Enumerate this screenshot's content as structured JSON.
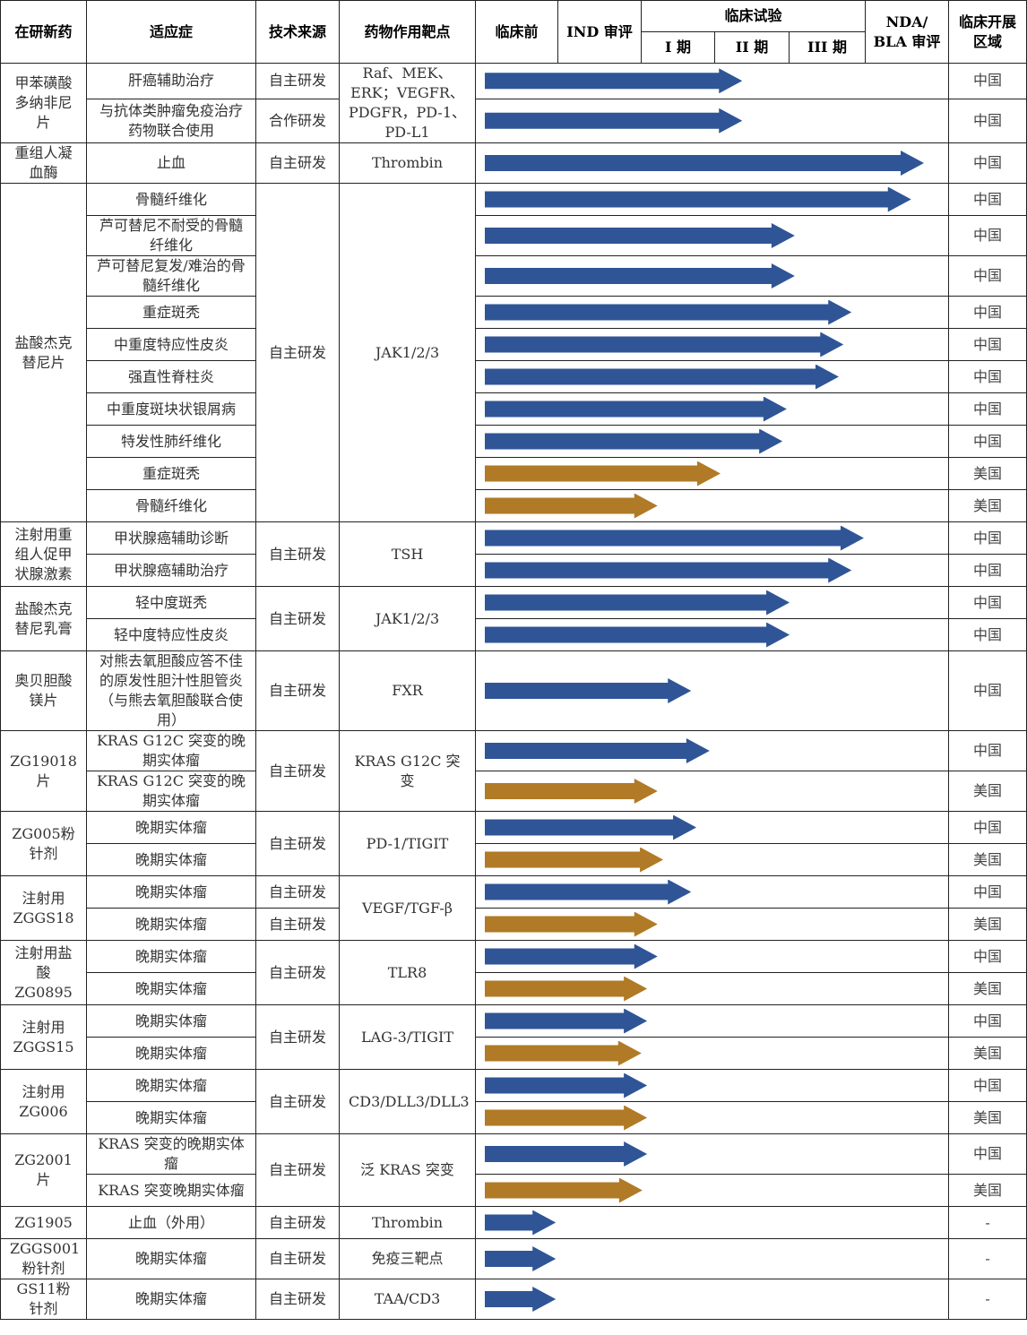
{
  "header": {
    "drug": "在研新药",
    "indication": "适应症",
    "source": "技术来源",
    "target": "药物作用靶点",
    "preclinical": "临床前",
    "ind": "IND 审评",
    "clinical": "临床试验",
    "phase1": "I 期",
    "phase2": "II 期",
    "phase3": "III 期",
    "nda": "NDA/ BLA 审评",
    "region": "临床开展区域"
  },
  "colors": {
    "china": "#2F5597",
    "usa": "#B07A26"
  },
  "drugs": [
    {
      "name": "甲苯磺酸多纳非尼片",
      "target": "Raf、MEK、ERK；VEGFR、PDGFR，PD-1、PD-L1",
      "indications": [
        {
          "name": "肝癌辅助治疗",
          "source": "自主研发",
          "progress": 0.563,
          "region": "中国"
        },
        {
          "name": "与抗体类肿瘤免疫治疗药物联合使用",
          "source": "合作研发",
          "progress": 0.563,
          "region": "中国"
        }
      ]
    },
    {
      "name": "重组人凝血酶",
      "source": "自主研发",
      "target": "Thrombin",
      "indications": [
        {
          "name": "止血",
          "progress": 0.947,
          "region": "中国"
        }
      ]
    },
    {
      "name": "盐酸杰克替尼片",
      "source": "自主研发",
      "target": "JAK1/2/3",
      "indications": [
        {
          "name": "骨髓纤维化",
          "progress": 0.92,
          "region": "中国"
        },
        {
          "name": "芦可替尼不耐受的骨髓纤维化",
          "progress": 0.674,
          "region": "中国"
        },
        {
          "name": "芦可替尼复发/难治的骨髓纤维化",
          "progress": 0.674,
          "region": "中国"
        },
        {
          "name": "重症斑秃",
          "progress": 0.794,
          "region": "中国"
        },
        {
          "name": "中重度特应性皮炎",
          "progress": 0.777,
          "region": "中国"
        },
        {
          "name": "强直性脊柱炎",
          "progress": 0.767,
          "region": "中国"
        },
        {
          "name": "中重度斑块状银屑病",
          "progress": 0.657,
          "region": "中国"
        },
        {
          "name": "特发性肺纤维化",
          "progress": 0.648,
          "region": "中国"
        },
        {
          "name": "重症斑秃",
          "progress": 0.517,
          "region": "美国"
        },
        {
          "name": "骨髓纤维化",
          "progress": 0.384,
          "region": "美国"
        }
      ]
    },
    {
      "name": "注射用重组人促甲状腺激素",
      "source": "自主研发",
      "target": "TSH",
      "indications": [
        {
          "name": "甲状腺癌辅助诊断",
          "progress": 0.82,
          "region": "中国"
        },
        {
          "name": "甲状腺癌辅助治疗",
          "progress": 0.794,
          "region": "中国"
        }
      ]
    },
    {
      "name": "盐酸杰克替尼乳膏",
      "source": "自主研发",
      "target": "JAK1/2/3",
      "indications": [
        {
          "name": "轻中度斑秃",
          "progress": 0.663,
          "region": "中国"
        },
        {
          "name": "轻中度特应性皮炎",
          "progress": 0.663,
          "region": "中国"
        }
      ]
    },
    {
      "name": "奥贝胆酸镁片",
      "source": "自主研发",
      "target": "FXR",
      "indications": [
        {
          "name": "对熊去氧胆酸应答不佳的原发性胆汁性胆管炎（与熊去氧胆酸联合使用）",
          "progress": 0.455,
          "region": "中国"
        }
      ]
    },
    {
      "name": "ZG19018片",
      "source": "自主研发",
      "target": "KRAS G12C 突变",
      "indications": [
        {
          "name": "KRAS G12C 突变的晚期实体瘤",
          "progress": 0.494,
          "region": "中国"
        },
        {
          "name": "KRAS G12C 突变的晚期实体瘤",
          "progress": 0.384,
          "region": "美国"
        }
      ]
    },
    {
      "name": "ZG005粉针剂",
      "source": "自主研发",
      "target": "PD-1/TIGIT",
      "indications": [
        {
          "name": "晚期实体瘤",
          "progress": 0.466,
          "region": "中国"
        },
        {
          "name": "晚期实体瘤",
          "progress": 0.396,
          "region": "美国"
        }
      ]
    },
    {
      "name": "注射用ZGGS18",
      "target": "VEGF/TGF-β",
      "indications": [
        {
          "name": "晚期实体瘤",
          "source": "自主研发",
          "progress": 0.455,
          "region": "中国"
        },
        {
          "name": "晚期实体瘤",
          "source": "自主研发",
          "progress": 0.384,
          "region": "美国"
        }
      ]
    },
    {
      "name": "注射用盐酸ZG0895",
      "source": "自主研发",
      "target": "TLR8",
      "indications": [
        {
          "name": "晚期实体瘤",
          "progress": 0.384,
          "region": "中国"
        },
        {
          "name": "晚期实体瘤",
          "progress": 0.362,
          "region": "美国"
        }
      ]
    },
    {
      "name": "注射用ZGGS15",
      "source": "自主研发",
      "target": "LAG-3/TIGIT",
      "indications": [
        {
          "name": "晚期实体瘤",
          "progress": 0.362,
          "region": "中国"
        },
        {
          "name": "晚期实体瘤",
          "progress": 0.35,
          "region": "美国"
        }
      ]
    },
    {
      "name": "注射用ZG006",
      "source": "自主研发",
      "target": "CD3/DLL3/DLL3",
      "indications": [
        {
          "name": "晚期实体瘤",
          "progress": 0.362,
          "region": "中国"
        },
        {
          "name": "晚期实体瘤",
          "progress": 0.362,
          "region": "美国"
        }
      ]
    },
    {
      "name": "ZG2001片",
      "source": "自主研发",
      "target": "泛 KRAS 突变",
      "indications": [
        {
          "name": "KRAS 突变的晚期实体瘤",
          "progress": 0.362,
          "region": "中国"
        },
        {
          "name": "KRAS 突变晚期实体瘤",
          "progress": 0.352,
          "region": "美国"
        }
      ]
    },
    {
      "name": "ZG1905",
      "source": "自主研发",
      "target": "Thrombin",
      "indications": [
        {
          "name": "止血（外用）",
          "progress": 0.169,
          "region": "-"
        }
      ]
    },
    {
      "name": "ZGGS001粉针剂",
      "source": "自主研发",
      "target": "免疫三靶点",
      "indications": [
        {
          "name": "晚期实体瘤",
          "progress": 0.169,
          "region": "-"
        }
      ]
    },
    {
      "name": "GS11粉针剂",
      "source": "自主研发",
      "target": "TAA/CD3",
      "indications": [
        {
          "name": "晚期实体瘤",
          "progress": 0.169,
          "region": "-"
        }
      ]
    }
  ]
}
